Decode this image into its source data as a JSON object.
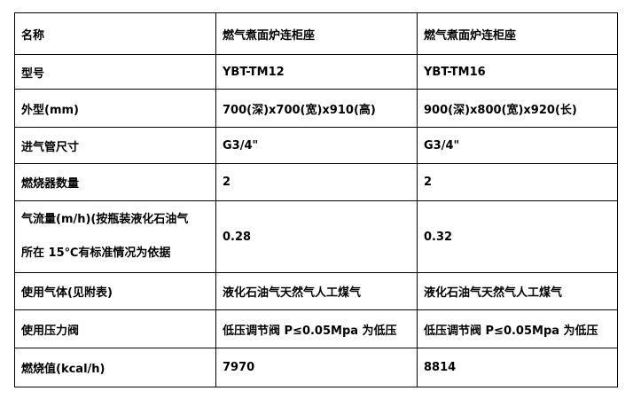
{
  "rows": [
    [
      "名称",
      "燃气煮面炉连柜座",
      "燃气煮面炉连柜座"
    ],
    [
      "型号",
      "YBT-TM12",
      "YBT-TM16"
    ],
    [
      "外型(mm)",
      "700(深)x700(宽)x910(高)",
      "900(深)x800(宽)x920(长)"
    ],
    [
      "进气管尺寸",
      "G3/4\"",
      "G3/4\""
    ],
    [
      "燃烧器数量",
      "2",
      "2"
    ],
    [
      "气流量(m/h)(按瓶装液化石油气",
      "0.28",
      "0.32"
    ],
    [
      "使用气体(见附表)",
      "液化石油气天然气人工煤气",
      "液化石油气天然气人工煤气"
    ],
    [
      "使用压力阀",
      "低压调节阀 P≤0.05Mpa 为低压",
      "低压调节阀 P≤0.05Mpa 为低压"
    ],
    [
      "燃烧值(kcal/h)",
      "7970",
      "8814"
    ]
  ],
  "row6_line2": "所在 15℃有标准情况为依据"
}
